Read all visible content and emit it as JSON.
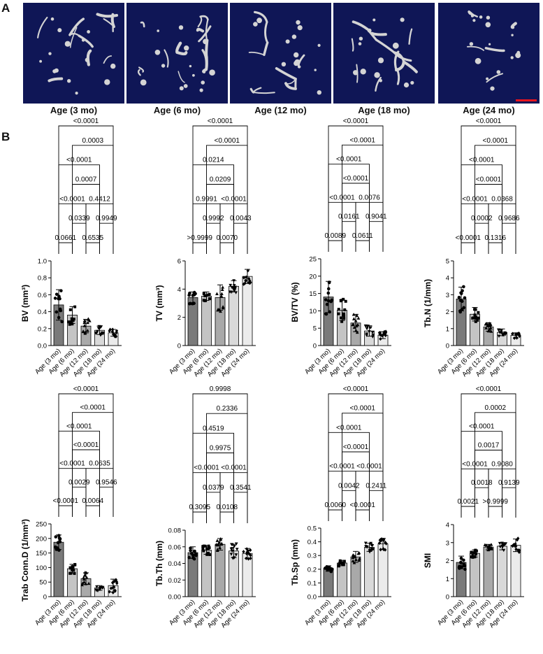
{
  "panels": {
    "a": "A",
    "b": "B"
  },
  "scans": [
    {
      "label": "Age (3 mo)"
    },
    {
      "label": "Age (6 mo)"
    },
    {
      "label": "Age (12 mo)"
    },
    {
      "label": "Age (18 mo)"
    },
    {
      "label": "Age (24 mo)"
    }
  ],
  "colors": {
    "scan_bg": "#0f1656",
    "bone": "#d4d4d4",
    "scale_bar": "#e8141e",
    "bar_fills": [
      "#7a7a7a",
      "#c4c4c4",
      "#a9a9a9",
      "#d9d9d9",
      "#ebebeb"
    ]
  },
  "chart_data": [
    {
      "type": "bar",
      "ylabel": "BV (mm³)",
      "ylim": [
        0.0,
        1.0
      ],
      "ticks": [
        "0.0",
        "0.2",
        "0.4",
        "0.6",
        "0.8",
        "1.0"
      ],
      "categories": [
        "Age (3 mo)",
        "Age (6 mo)",
        "Age (12 mo)",
        "Age (18 mo)",
        "Age (24 mo)"
      ],
      "values": [
        0.48,
        0.36,
        0.23,
        0.18,
        0.15
      ],
      "errors": [
        0.18,
        0.1,
        0.08,
        0.05,
        0.04
      ],
      "comparisons": [
        {
          "a": 0,
          "b": 1,
          "p": "0.0661",
          "level": 0
        },
        {
          "a": 1,
          "b": 2,
          "p": "0.0339",
          "level": 1
        },
        {
          "a": 2,
          "b": 3,
          "p": "0.6535",
          "level": 0
        },
        {
          "a": 3,
          "b": 4,
          "p": "0.9949",
          "level": 1
        },
        {
          "a": 0,
          "b": 2,
          "p": "<0.0001",
          "level": 2
        },
        {
          "a": 2,
          "b": 4,
          "p": "0.4412",
          "level": 2
        },
        {
          "a": 1,
          "b": 3,
          "p": "0.0007",
          "level": 3
        },
        {
          "a": 0,
          "b": 3,
          "p": "<0.0001",
          "level": 4
        },
        {
          "a": 1,
          "b": 4,
          "p": "0.0003",
          "level": 5
        },
        {
          "a": 0,
          "b": 4,
          "p": "<0.0001",
          "level": 6
        }
      ]
    },
    {
      "type": "bar",
      "ylabel": "TV (mm³)",
      "ylim": [
        0,
        6
      ],
      "ticks": [
        "0",
        "2",
        "4",
        "6"
      ],
      "categories": [
        "Age (3 mo)",
        "Age (6 mo)",
        "Age (12 mo)",
        "Age (18 mo)",
        "Age (24 mo)"
      ],
      "values": [
        3.4,
        3.5,
        3.4,
        4.2,
        4.9
      ],
      "errors": [
        0.4,
        0.3,
        0.9,
        0.4,
        0.5
      ],
      "comparisons": [
        {
          "a": 0,
          "b": 1,
          "p": ">0.9999",
          "level": 0
        },
        {
          "a": 1,
          "b": 2,
          "p": "0.9992",
          "level": 1
        },
        {
          "a": 2,
          "b": 3,
          "p": "0.0070",
          "level": 0
        },
        {
          "a": 3,
          "b": 4,
          "p": "0.0043",
          "level": 1
        },
        {
          "a": 0,
          "b": 2,
          "p": "0.9991",
          "level": 2
        },
        {
          "a": 2,
          "b": 4,
          "p": "<0.0001",
          "level": 2
        },
        {
          "a": 1,
          "b": 3,
          "p": "0.0209",
          "level": 3
        },
        {
          "a": 0,
          "b": 3,
          "p": "0.0214",
          "level": 4
        },
        {
          "a": 1,
          "b": 4,
          "p": "<0.0001",
          "level": 5
        },
        {
          "a": 0,
          "b": 4,
          "p": "<0.0001",
          "level": 6
        }
      ]
    },
    {
      "type": "bar",
      "ylabel": "BV/TV (%)",
      "ylim": [
        0,
        25
      ],
      "ticks": [
        "0",
        "5",
        "10",
        "15",
        "20",
        "25"
      ],
      "categories": [
        "Age (3 mo)",
        "Age (6 mo)",
        "Age (12 mo)",
        "Age (18 mo)",
        "Age (24 mo)"
      ],
      "values": [
        14.0,
        10.2,
        6.5,
        4.2,
        3.0
      ],
      "errors": [
        4.5,
        3.0,
        2.5,
        1.5,
        1.0
      ],
      "comparisons": [
        {
          "a": 0,
          "b": 1,
          "p": "0.0089",
          "level": 0
        },
        {
          "a": 1,
          "b": 2,
          "p": "0.0161",
          "level": 1
        },
        {
          "a": 2,
          "b": 3,
          "p": "0.0611",
          "level": 0
        },
        {
          "a": 3,
          "b": 4,
          "p": "0.9041",
          "level": 1
        },
        {
          "a": 0,
          "b": 2,
          "p": "<0.0001",
          "level": 2
        },
        {
          "a": 2,
          "b": 4,
          "p": "0.0076",
          "level": 2
        },
        {
          "a": 1,
          "b": 3,
          "p": "<0.0001",
          "level": 3
        },
        {
          "a": 0,
          "b": 3,
          "p": "<0.0001",
          "level": 4
        },
        {
          "a": 1,
          "b": 4,
          "p": "<0.0001",
          "level": 5
        },
        {
          "a": 0,
          "b": 4,
          "p": "<0.0001",
          "level": 6
        }
      ]
    },
    {
      "type": "bar",
      "ylabel": "Tb.N (1/mm)",
      "ylim": [
        0,
        5
      ],
      "ticks": [
        "0",
        "1",
        "2",
        "3",
        "4",
        "5"
      ],
      "categories": [
        "Age (3 mo)",
        "Age (6 mo)",
        "Age (12 mo)",
        "Age (18 mo)",
        "Age (24 mo)"
      ],
      "values": [
        2.75,
        1.85,
        1.1,
        0.78,
        0.6
      ],
      "errors": [
        0.7,
        0.4,
        0.25,
        0.2,
        0.15
      ],
      "comparisons": [
        {
          "a": 0,
          "b": 1,
          "p": "<0.0001",
          "level": 0
        },
        {
          "a": 1,
          "b": 2,
          "p": "0.0002",
          "level": 1
        },
        {
          "a": 2,
          "b": 3,
          "p": "0.1316",
          "level": 0
        },
        {
          "a": 3,
          "b": 4,
          "p": "0.9686",
          "level": 1
        },
        {
          "a": 0,
          "b": 2,
          "p": "<0.0001",
          "level": 2
        },
        {
          "a": 2,
          "b": 4,
          "p": "0.0368",
          "level": 2
        },
        {
          "a": 1,
          "b": 3,
          "p": "<0.0001",
          "level": 3
        },
        {
          "a": 0,
          "b": 3,
          "p": "<0.0001",
          "level": 4
        },
        {
          "a": 1,
          "b": 4,
          "p": "<0.0001",
          "level": 5
        },
        {
          "a": 0,
          "b": 4,
          "p": "<0.0001",
          "level": 6
        }
      ]
    },
    {
      "type": "bar",
      "ylabel": "Trab Conn.D (1/mm³)",
      "ylim": [
        0,
        250
      ],
      "ticks": [
        "0",
        "50",
        "100",
        "150",
        "200",
        "250"
      ],
      "categories": [
        "Age (3 mo)",
        "Age (6 mo)",
        "Age (12 mo)",
        "Age (18 mo)",
        "Age (24 mo)"
      ],
      "values": [
        187,
        96,
        62,
        30,
        38
      ],
      "errors": [
        25,
        15,
        20,
        8,
        22
      ],
      "comparisons": [
        {
          "a": 0,
          "b": 1,
          "p": "<0.0001",
          "level": 0
        },
        {
          "a": 1,
          "b": 2,
          "p": "0.0029",
          "level": 1
        },
        {
          "a": 2,
          "b": 3,
          "p": "0.0064",
          "level": 0
        },
        {
          "a": 3,
          "b": 4,
          "p": "0.9546",
          "level": 1
        },
        {
          "a": 0,
          "b": 2,
          "p": "<0.0001",
          "level": 2
        },
        {
          "a": 2,
          "b": 4,
          "p": "0.0635",
          "level": 2
        },
        {
          "a": 1,
          "b": 3,
          "p": "<0.0001",
          "level": 3
        },
        {
          "a": 0,
          "b": 3,
          "p": "<0.0001",
          "level": 4
        },
        {
          "a": 1,
          "b": 4,
          "p": "<0.0001",
          "level": 5
        },
        {
          "a": 0,
          "b": 4,
          "p": "<0.0001",
          "level": 6
        }
      ]
    },
    {
      "type": "bar",
      "ylabel": "Tb.Th (mm)",
      "ylim": [
        0.0,
        0.08
      ],
      "ticks": [
        "0.00",
        "0.02",
        "0.04",
        "0.06",
        "0.08"
      ],
      "categories": [
        "Age (3 mo)",
        "Age (6 mo)",
        "Age (12 mo)",
        "Age (18 mo)",
        "Age (24 mo)"
      ],
      "values": [
        0.053,
        0.056,
        0.063,
        0.055,
        0.052
      ],
      "errors": [
        0.007,
        0.005,
        0.007,
        0.008,
        0.006
      ],
      "comparisons": [
        {
          "a": 0,
          "b": 1,
          "p": "0.3095",
          "level": 0
        },
        {
          "a": 1,
          "b": 2,
          "p": "0.0379",
          "level": 1
        },
        {
          "a": 2,
          "b": 3,
          "p": "0.0108",
          "level": 0
        },
        {
          "a": 3,
          "b": 4,
          "p": "0.3541",
          "level": 1
        },
        {
          "a": 0,
          "b": 2,
          "p": "<0.0001",
          "level": 2
        },
        {
          "a": 2,
          "b": 4,
          "p": "<0.0001",
          "level": 2
        },
        {
          "a": 1,
          "b": 3,
          "p": "0.9975",
          "level": 3
        },
        {
          "a": 0,
          "b": 3,
          "p": "0.4519",
          "level": 4
        },
        {
          "a": 1,
          "b": 4,
          "p": "0.2336",
          "level": 5
        },
        {
          "a": 0,
          "b": 4,
          "p": "0.9998",
          "level": 6
        }
      ]
    },
    {
      "type": "bar",
      "ylabel": "Tb.Sp (mm)",
      "ylim": [
        0.0,
        0.5
      ],
      "ticks": [
        "0.0",
        "0.1",
        "0.2",
        "0.3",
        "0.4",
        "0.5"
      ],
      "categories": [
        "Age (3 mo)",
        "Age (6 mo)",
        "Age (12 mo)",
        "Age (18 mo)",
        "Age (24 mo)"
      ],
      "values": [
        0.205,
        0.245,
        0.29,
        0.36,
        0.385
      ],
      "errors": [
        0.02,
        0.02,
        0.04,
        0.03,
        0.04
      ],
      "comparisons": [
        {
          "a": 0,
          "b": 1,
          "p": "0.0060",
          "level": 0
        },
        {
          "a": 1,
          "b": 2,
          "p": "0.0042",
          "level": 1
        },
        {
          "a": 2,
          "b": 3,
          "p": "<0.0001",
          "level": 0
        },
        {
          "a": 3,
          "b": 4,
          "p": "0.2411",
          "level": 1
        },
        {
          "a": 0,
          "b": 2,
          "p": "<0.0001",
          "level": 2
        },
        {
          "a": 2,
          "b": 4,
          "p": "<0.0001",
          "level": 2
        },
        {
          "a": 1,
          "b": 3,
          "p": "<0.0001",
          "level": 3
        },
        {
          "a": 0,
          "b": 3,
          "p": "<0.0001",
          "level": 4
        },
        {
          "a": 1,
          "b": 4,
          "p": "<0.0001",
          "level": 5
        },
        {
          "a": 0,
          "b": 4,
          "p": "<0.0001",
          "level": 6
        }
      ]
    },
    {
      "type": "bar",
      "ylabel": "SMI",
      "ylim": [
        0,
        4
      ],
      "ticks": [
        "0",
        "1",
        "2",
        "3",
        "4"
      ],
      "categories": [
        "Age (3 mo)",
        "Age (6 mo)",
        "Age (12 mo)",
        "Age (18 mo)",
        "Age (24 mo)"
      ],
      "values": [
        1.9,
        2.4,
        2.75,
        2.8,
        2.85
      ],
      "errors": [
        0.35,
        0.2,
        0.15,
        0.2,
        0.35
      ],
      "comparisons": [
        {
          "a": 0,
          "b": 1,
          "p": "0.0021",
          "level": 0
        },
        {
          "a": 1,
          "b": 2,
          "p": "0.0018",
          "level": 1
        },
        {
          "a": 2,
          "b": 3,
          "p": ">0.9999",
          "level": 0
        },
        {
          "a": 3,
          "b": 4,
          "p": "0.9139",
          "level": 1
        },
        {
          "a": 0,
          "b": 2,
          "p": "<0.0001",
          "level": 2
        },
        {
          "a": 2,
          "b": 4,
          "p": "0.9080",
          "level": 2
        },
        {
          "a": 1,
          "b": 3,
          "p": "0.0017",
          "level": 3
        },
        {
          "a": 0,
          "b": 3,
          "p": "<0.0001",
          "level": 4
        },
        {
          "a": 1,
          "b": 4,
          "p": "0.0002",
          "level": 5
        },
        {
          "a": 0,
          "b": 4,
          "p": "<0.0001",
          "level": 6
        }
      ]
    }
  ]
}
